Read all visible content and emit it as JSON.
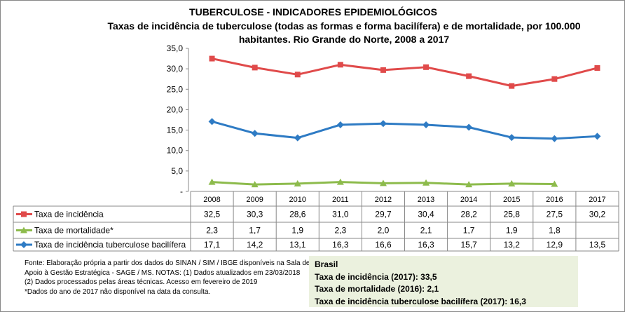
{
  "chart_data": {
    "type": "line",
    "title": "TUBERCULOSE - INDICADORES EPIDEMIOLÓGICOS",
    "subtitle": "Taxas de incidência de tuberculose (todas as formas e forma bacilífera) e de mortalidade,  por 100.000 habitantes. Rio Grande do Norte, 2008 a 2017",
    "categories": [
      "2008",
      "2009",
      "2010",
      "2011",
      "2012",
      "2013",
      "2014",
      "2015",
      "2016",
      "2017"
    ],
    "ylim": [
      0,
      35
    ],
    "yticks": [
      "-",
      "5,0",
      "10,0",
      "15,0",
      "20,0",
      "25,0",
      "30,0",
      "35,0"
    ],
    "grid": false,
    "legend": "data-table",
    "series": [
      {
        "name": "Taxa de incidência",
        "color": "#e04a4a",
        "marker": "square",
        "values": [
          32.5,
          30.3,
          28.6,
          31.0,
          29.7,
          30.4,
          28.2,
          25.8,
          27.5,
          30.2
        ],
        "labels": [
          "32,5",
          "30,3",
          "28,6",
          "31,0",
          "29,7",
          "30,4",
          "28,2",
          "25,8",
          "27,5",
          "30,2"
        ]
      },
      {
        "name": "Taxa de mortalidade*",
        "color": "#8dbb4c",
        "marker": "triangle",
        "values": [
          2.3,
          1.7,
          1.9,
          2.3,
          2.0,
          2.1,
          1.7,
          1.9,
          1.8,
          null
        ],
        "labels": [
          "2,3",
          "1,7",
          "1,9",
          "2,3",
          "2,0",
          "2,1",
          "1,7",
          "1,9",
          "1,8",
          ""
        ]
      },
      {
        "name": "Taxa de incidência tuberculose bacilífera",
        "color": "#2e7bc4",
        "marker": "diamond",
        "values": [
          17.1,
          14.2,
          13.1,
          16.3,
          16.6,
          16.3,
          15.7,
          13.2,
          12.9,
          13.5
        ],
        "labels": [
          "17,1",
          "14,2",
          "13,1",
          "16,3",
          "16,6",
          "16,3",
          "15,7",
          "13,2",
          "12,9",
          "13,5"
        ]
      }
    ]
  },
  "notes": [
    "Fonte: Elaboração própria a partir dos dados do SINAN / SIM / IBGE  disponíveis na Sala de Apoio  à Gestão Estratégica - SAGE / MS. NOTAS: (1) Dados atualizados em 23/03/2018",
    "(2) Dados processados pelas áreas técnicas. Acesso em fevereiro de  2019",
    "*Dados do ano de 2017 não disponível na data da consulta."
  ],
  "brasil": {
    "title": "Brasil",
    "lines": [
      "Taxa de incidência  (2017): 33,5",
      "Taxa de mortalidade (2016): 2,1",
      "Taxa de incidência  tuberculose bacilífera  (2017): 16,3"
    ]
  }
}
